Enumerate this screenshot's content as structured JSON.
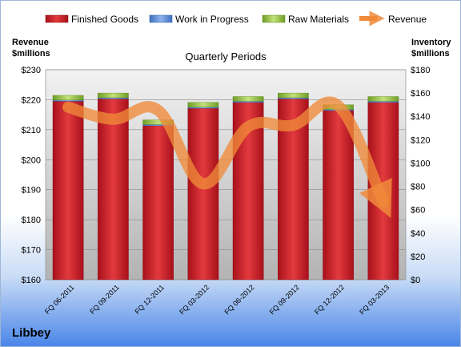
{
  "chart_data": {
    "type": "bar",
    "title": "Quarterly Periods",
    "company": "Libbey",
    "categories": [
      "FQ 06-2011",
      "FQ 09-2011",
      "FQ 12-2011",
      "FQ 03-2012",
      "FQ 06-2012",
      "FQ 09-2012",
      "FQ 12-2012",
      "FQ 03-2013"
    ],
    "stacked": true,
    "series": [
      {
        "name": "Finished Goods",
        "values": [
          153,
          155,
          132,
          147,
          152,
          155,
          145,
          152
        ],
        "color": "#d9262a",
        "axis": "right"
      },
      {
        "name": "Work in Progress",
        "values": [
          1,
          1,
          1,
          1,
          1,
          1,
          1,
          1
        ],
        "color": "#5b8ad6",
        "axis": "right"
      },
      {
        "name": "Raw Materials",
        "values": [
          4,
          4,
          4,
          4,
          4,
          4,
          4,
          4
        ],
        "color": "#8fbf3c",
        "axis": "right"
      }
    ],
    "line_series": {
      "name": "Revenue",
      "values": [
        217.5,
        213.5,
        216.5,
        192,
        211,
        211.5,
        218,
        186
      ],
      "color": "#f08a3a",
      "axis": "left"
    },
    "left_axis": {
      "label_line1": "Revenue",
      "label_line2": "$millions",
      "ylim": [
        160,
        230
      ],
      "ticks": [
        "$160",
        "$170",
        "$180",
        "$190",
        "$200",
        "$210",
        "$220",
        "$230"
      ]
    },
    "right_axis": {
      "label_line1": "Inventory",
      "label_line2": "$millions",
      "ylim": [
        0,
        180
      ],
      "ticks": [
        "$0",
        "$20",
        "$40",
        "$60",
        "$80",
        "$100",
        "$120",
        "$140",
        "$160",
        "$180"
      ]
    },
    "legend_position": "top",
    "grid": true
  }
}
